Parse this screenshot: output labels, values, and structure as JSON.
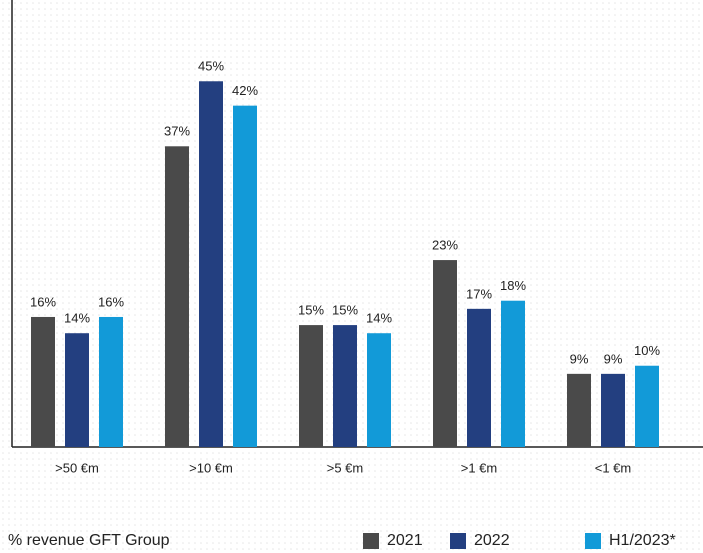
{
  "chart_data": {
    "type": "bar",
    "ylabel": "% revenue GFT Group",
    "categories": [
      ">50 €m",
      ">10 €m",
      ">5 €m",
      ">1 €m",
      "<1 €m"
    ],
    "series": [
      {
        "name": "2021",
        "color": "#4a4a4a",
        "values": [
          16,
          37,
          15,
          23,
          9
        ],
        "value_labels": [
          "16%",
          "37%",
          "15%",
          "23%",
          "9%"
        ]
      },
      {
        "name": "2022",
        "color": "#233f80",
        "values": [
          14,
          45,
          15,
          17,
          9
        ],
        "value_labels": [
          "14%",
          "45%",
          "15%",
          "17%",
          "9%"
        ]
      },
      {
        "name": "H1/2023*",
        "color": "#129ad8",
        "values": [
          16,
          42,
          14,
          18,
          10
        ],
        "value_labels": [
          "16%",
          "42%",
          "14%",
          "18%",
          "10%"
        ]
      }
    ],
    "ylim": [
      0,
      55
    ],
    "legend": "bottom-right"
  }
}
